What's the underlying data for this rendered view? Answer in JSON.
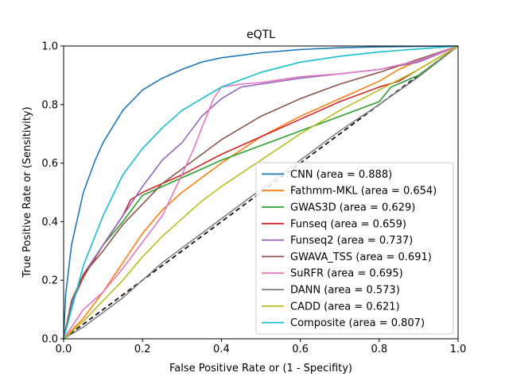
{
  "chart_data": {
    "type": "line",
    "title": "eQTL",
    "xlabel": "False Positive Rate or (1 - Specifity)",
    "ylabel": "True Positive Rate or (Sensitivity)",
    "xlim": [
      0,
      1
    ],
    "ylim": [
      0,
      1
    ],
    "xticks": [
      "0.0",
      "0.2",
      "0.4",
      "0.6",
      "0.8",
      "1.0"
    ],
    "yticks": [
      "0.0",
      "0.2",
      "0.4",
      "0.6",
      "0.8",
      "1.0"
    ],
    "grid": false,
    "legend_position": "lower-right",
    "diagonal": {
      "color": "#000000",
      "style": "dashed",
      "x": [
        0,
        1
      ],
      "y": [
        0,
        1
      ]
    },
    "series": [
      {
        "name": "CNN (area = 0.888)",
        "color": "#1f77b4",
        "x": [
          0,
          0.005,
          0.02,
          0.05,
          0.08,
          0.1,
          0.15,
          0.2,
          0.25,
          0.3,
          0.35,
          0.4,
          0.5,
          0.6,
          0.7,
          0.8,
          0.9,
          1.0
        ],
        "y": [
          0,
          0.15,
          0.32,
          0.5,
          0.61,
          0.67,
          0.78,
          0.85,
          0.89,
          0.92,
          0.945,
          0.96,
          0.977,
          0.988,
          0.994,
          0.997,
          0.999,
          1.0
        ]
      },
      {
        "name": "Fathmm-MKL (area = 0.654)",
        "color": "#ff7f0e",
        "x": [
          0,
          0.05,
          0.1,
          0.15,
          0.2,
          0.25,
          0.3,
          0.35,
          0.4,
          0.5,
          0.6,
          0.7,
          0.8,
          0.85,
          0.9,
          0.95,
          1.0
        ],
        "y": [
          0,
          0.07,
          0.16,
          0.26,
          0.36,
          0.44,
          0.5,
          0.55,
          0.6,
          0.69,
          0.76,
          0.82,
          0.88,
          0.92,
          0.95,
          0.975,
          1.0
        ]
      },
      {
        "name": "GWAS3D (area = 0.629)",
        "color": "#2ca02c",
        "x": [
          0,
          0.02,
          0.05,
          0.1,
          0.15,
          0.2,
          0.25,
          0.3,
          0.35,
          0.4,
          0.5,
          0.6,
          0.7,
          0.8,
          0.83,
          0.9,
          0.95,
          1.0
        ],
        "y": [
          0,
          0.12,
          0.22,
          0.32,
          0.4,
          0.49,
          0.52,
          0.55,
          0.58,
          0.61,
          0.66,
          0.71,
          0.76,
          0.81,
          0.86,
          0.9,
          0.95,
          1.0
        ]
      },
      {
        "name": "Funseq (area = 0.659)",
        "color": "#d62728",
        "x": [
          0,
          0.02,
          0.05,
          0.1,
          0.15,
          0.17,
          0.2,
          0.25,
          0.3,
          0.35,
          0.4,
          0.5,
          0.6,
          0.7,
          0.8,
          0.85,
          0.9,
          0.95,
          1.0
        ],
        "y": [
          0,
          0.12,
          0.21,
          0.32,
          0.42,
          0.475,
          0.5,
          0.53,
          0.56,
          0.595,
          0.63,
          0.69,
          0.75,
          0.81,
          0.86,
          0.88,
          0.92,
          0.96,
          1.0
        ]
      },
      {
        "name": "Funseq2 (area = 0.737)",
        "color": "#9467bd",
        "x": [
          0,
          0.02,
          0.05,
          0.1,
          0.15,
          0.2,
          0.25,
          0.3,
          0.35,
          0.4,
          0.45,
          0.5,
          0.6,
          0.7,
          0.8,
          0.9,
          1.0
        ],
        "y": [
          0,
          0.12,
          0.22,
          0.32,
          0.42,
          0.52,
          0.61,
          0.67,
          0.76,
          0.82,
          0.86,
          0.87,
          0.89,
          0.905,
          0.92,
          0.945,
          1.0
        ]
      },
      {
        "name": "GWAVA_TSS (area = 0.691)",
        "color": "#8c564b",
        "x": [
          0,
          0.02,
          0.05,
          0.1,
          0.15,
          0.2,
          0.25,
          0.3,
          0.35,
          0.4,
          0.5,
          0.6,
          0.7,
          0.8,
          0.9,
          1.0
        ],
        "y": [
          0,
          0.13,
          0.22,
          0.3,
          0.39,
          0.46,
          0.53,
          0.58,
          0.63,
          0.68,
          0.76,
          0.82,
          0.87,
          0.91,
          0.955,
          1.0
        ]
      },
      {
        "name": "SuRFR (area = 0.695)",
        "color": "#e377c2",
        "x": [
          0,
          0.05,
          0.1,
          0.15,
          0.2,
          0.25,
          0.3,
          0.33,
          0.35,
          0.38,
          0.4,
          0.45,
          0.5,
          0.6,
          0.7,
          0.8,
          0.9,
          1.0
        ],
        "y": [
          0,
          0.1,
          0.16,
          0.24,
          0.33,
          0.42,
          0.56,
          0.65,
          0.72,
          0.82,
          0.86,
          0.87,
          0.875,
          0.895,
          0.905,
          0.92,
          0.95,
          1.0
        ]
      },
      {
        "name": "DANN (area = 0.573)",
        "color": "#7f7f7f",
        "x": [
          0,
          0.05,
          0.1,
          0.15,
          0.2,
          0.25,
          0.3,
          0.35,
          0.4,
          0.5,
          0.6,
          0.7,
          0.8,
          0.9,
          1.0
        ],
        "y": [
          0,
          0.04,
          0.09,
          0.14,
          0.2,
          0.26,
          0.31,
          0.36,
          0.41,
          0.51,
          0.61,
          0.71,
          0.8,
          0.895,
          1.0
        ]
      },
      {
        "name": "CADD (area = 0.621)",
        "color": "#bcbd22",
        "x": [
          0,
          0.05,
          0.1,
          0.15,
          0.2,
          0.25,
          0.3,
          0.35,
          0.4,
          0.5,
          0.6,
          0.7,
          0.8,
          0.9,
          1.0
        ],
        "y": [
          0,
          0.06,
          0.13,
          0.2,
          0.28,
          0.35,
          0.41,
          0.47,
          0.52,
          0.61,
          0.7,
          0.78,
          0.85,
          0.92,
          1.0
        ]
      },
      {
        "name": "Composite (area = 0.807)",
        "color": "#17becf",
        "x": [
          0,
          0.02,
          0.05,
          0.1,
          0.15,
          0.2,
          0.25,
          0.3,
          0.35,
          0.4,
          0.5,
          0.6,
          0.7,
          0.8,
          0.9,
          1.0
        ],
        "y": [
          0,
          0.1,
          0.25,
          0.42,
          0.56,
          0.65,
          0.72,
          0.78,
          0.82,
          0.86,
          0.91,
          0.945,
          0.965,
          0.98,
          0.99,
          1.0
        ]
      }
    ]
  }
}
